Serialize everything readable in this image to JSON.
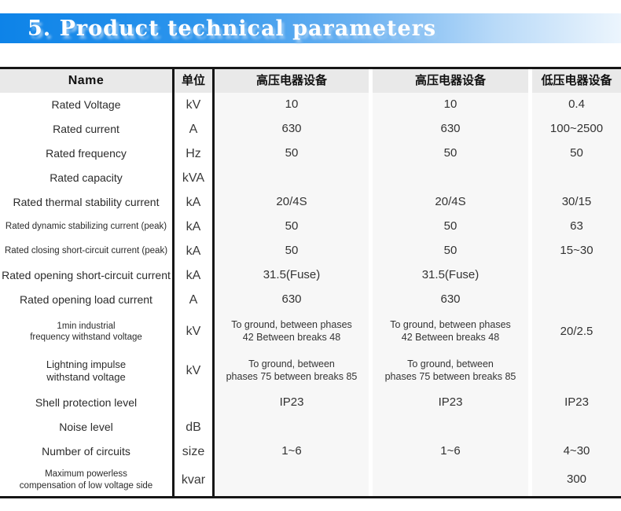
{
  "banner": {
    "title": "5. Product technical parameters"
  },
  "colors": {
    "banner_blue_start": "#0d83e8",
    "banner_blue_end": "#ecf5fd",
    "header_bg": "#e9e9e9",
    "data_column_bg": "#f7f7f7",
    "table_border": "#161616",
    "title_text": "#ffffff"
  },
  "table": {
    "columns": [
      "Name",
      "单位",
      "高压电器设备",
      "高压电器设备",
      "低压电器设备"
    ],
    "rows": [
      {
        "name": "Rated Voltage",
        "unit": "kV",
        "hv_a": "10",
        "hv_b": "10",
        "lv": "0.4"
      },
      {
        "name": "Rated current",
        "unit": "A",
        "hv_a": "630",
        "hv_b": "630",
        "lv": "100~2500"
      },
      {
        "name": "Rated frequency",
        "unit": "Hz",
        "hv_a": "50",
        "hv_b": "50",
        "lv": "50"
      },
      {
        "name": "Rated capacity",
        "unit": "kVA",
        "hv_a": "",
        "hv_b": "",
        "lv": ""
      },
      {
        "name": "Rated thermal stability current",
        "unit": "kA",
        "hv_a": "20/4S",
        "hv_b": "20/4S",
        "lv": "30/15"
      },
      {
        "name": "Rated dynamic stabilizing current (peak)",
        "unit": "kA",
        "hv_a": "50",
        "hv_b": "50",
        "lv": "63"
      },
      {
        "name": "Rated closing short-circuit current (peak)",
        "unit": "kA",
        "hv_a": "50",
        "hv_b": "50",
        "lv": "15~30"
      },
      {
        "name": "Rated opening short-circuit current",
        "unit": "kA",
        "hv_a": "31.5(Fuse)",
        "hv_b": "31.5(Fuse)",
        "lv": ""
      },
      {
        "name": "Rated opening load current",
        "unit": "A",
        "hv_a": "630",
        "hv_b": "630",
        "lv": ""
      },
      {
        "name": "1min industrial\nfrequency withstand voltage",
        "unit": "kV",
        "hv_a": "To ground, between phases\n42 Between breaks 48",
        "hv_b": "To ground, between phases\n42 Between breaks 48",
        "lv": "20/2.5"
      },
      {
        "name": "Lightning impulse\nwithstand voltage",
        "unit": "kV",
        "hv_a": "To ground, between\nphases 75 between breaks 85",
        "hv_b": "To ground, between\nphases 75 between breaks 85",
        "lv": ""
      },
      {
        "name": "Shell protection level",
        "unit": "",
        "hv_a": "IP23",
        "hv_b": "IP23",
        "lv": "IP23"
      },
      {
        "name": "Noise level",
        "unit": "dB",
        "hv_a": "",
        "hv_b": "",
        "lv": ""
      },
      {
        "name": "Number of circuits",
        "unit": "size",
        "hv_a": "1~6",
        "hv_b": "1~6",
        "lv": "4~30"
      },
      {
        "name": "Maximum powerless\ncompensation of low voltage side",
        "unit": "kvar",
        "hv_a": "",
        "hv_b": "",
        "lv": "300"
      }
    ]
  }
}
